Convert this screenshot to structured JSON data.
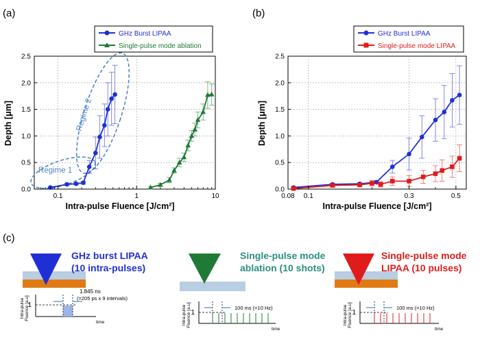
{
  "panel_labels": {
    "a": "(a)",
    "b": "(b)",
    "c": "(c)"
  },
  "colors": {
    "blue": "#1f2fd6",
    "green": "#1f7a35",
    "red": "#e01b1b",
    "regime": "#4f86c6",
    "substrate": "#e07b14",
    "film": "#b9cde3",
    "grid": "#999999",
    "teal": "#2a8f7f"
  },
  "chart_data": [
    {
      "id": "a",
      "type": "scatter",
      "xscale": "log",
      "xlim": [
        0.05,
        10
      ],
      "ylim": [
        0,
        2.5
      ],
      "xticks": [
        0.1,
        1,
        10
      ],
      "xtick_labels": [
        "0.1",
        "1",
        "10"
      ],
      "yticks": [
        0,
        0.5,
        1,
        1.5,
        2,
        2.5
      ],
      "ytick_labels": [
        "0.0",
        "0.5",
        "1.0",
        "1.5",
        "2.0",
        "2.5"
      ],
      "xlabel": "Intra-pulse Fluence [J/cm²]",
      "ylabel": "Depth [μm]",
      "legend_position": "top",
      "series": [
        {
          "name": "GHz Burst LIPAA",
          "color": "#1f2fd6",
          "marker": "circle",
          "x": [
            0.08,
            0.13,
            0.17,
            0.21,
            0.25,
            0.3,
            0.34,
            0.39,
            0.43,
            0.48,
            0.53
          ],
          "y": [
            0.03,
            0.09,
            0.1,
            0.12,
            0.42,
            0.68,
            0.98,
            1.2,
            1.5,
            1.7,
            1.78
          ],
          "err": [
            0.02,
            0.02,
            0.02,
            0.03,
            0.12,
            0.3,
            0.4,
            0.4,
            0.5,
            0.5,
            0.55
          ]
        },
        {
          "name": "Single-pulse mode ablation",
          "color": "#1f7a35",
          "marker": "triangle",
          "x": [
            1.5,
            2.0,
            2.6,
            3.0,
            3.5,
            4.0,
            4.5,
            5.0,
            5.5,
            6.0,
            7.0,
            8.0,
            9.0
          ],
          "y": [
            0.03,
            0.08,
            0.17,
            0.35,
            0.5,
            0.6,
            0.82,
            1.0,
            1.12,
            1.3,
            1.45,
            1.77,
            1.78
          ],
          "err": [
            0.02,
            0.03,
            0.05,
            0.05,
            0.08,
            0.08,
            0.1,
            0.1,
            0.12,
            0.15,
            0.15,
            0.25,
            0.2
          ]
        }
      ],
      "annotations": [
        "Regime 1",
        "Regime 2"
      ]
    },
    {
      "id": "b",
      "type": "scatter",
      "xscale": "log",
      "xlim": [
        0.08,
        0.56
      ],
      "ylim": [
        0,
        2.5
      ],
      "xticks": [
        0.08,
        0.1,
        0.3,
        0.5
      ],
      "xtick_labels": [
        "0.08",
        "0.1",
        "0.3",
        "0.5"
      ],
      "yticks": [
        0,
        0.5,
        1,
        1.5,
        2,
        2.5
      ],
      "ytick_labels": [
        "0.0",
        "0.5",
        "1.0",
        "1.5",
        "2.0",
        "2.5"
      ],
      "xlabel": "Intra-pulse Fluence [J/cm²]",
      "ylabel": "Depth [μm]",
      "legend_position": "top",
      "series": [
        {
          "name": "GHz Burst LIPAA",
          "color": "#1f2fd6",
          "marker": "circle",
          "x": [
            0.085,
            0.13,
            0.175,
            0.21,
            0.25,
            0.3,
            0.345,
            0.4,
            0.44,
            0.48,
            0.52
          ],
          "y": [
            0.03,
            0.09,
            0.1,
            0.13,
            0.42,
            0.66,
            0.98,
            1.3,
            1.45,
            1.67,
            1.77
          ],
          "err": [
            0.02,
            0.02,
            0.02,
            0.03,
            0.12,
            0.3,
            0.4,
            0.4,
            0.5,
            0.5,
            0.55
          ]
        },
        {
          "name": "Single-pulse mode LIPAA",
          "color": "#e01b1b",
          "marker": "square",
          "x": [
            0.085,
            0.13,
            0.175,
            0.2,
            0.22,
            0.25,
            0.3,
            0.35,
            0.4,
            0.43,
            0.48,
            0.52
          ],
          "y": [
            0.01,
            0.07,
            0.08,
            0.11,
            0.09,
            0.15,
            0.15,
            0.23,
            0.29,
            0.35,
            0.42,
            0.58
          ],
          "err": [
            0.02,
            0.02,
            0.03,
            0.05,
            0.05,
            0.08,
            0.1,
            0.12,
            0.15,
            0.2,
            0.2,
            0.25
          ]
        }
      ]
    }
  ],
  "panel_c": {
    "modes": [
      {
        "title": [
          "GHz burst LIPAA",
          "(10 intra-pulses)"
        ],
        "color": "#1f2fd6",
        "annotation": [
          "1.845 ns",
          "(=205 ps x 9 intervals)"
        ],
        "pulse_spacing": "dense"
      },
      {
        "title": [
          "Single-pulse mode",
          "ablation (10 shots)"
        ],
        "color": "#1f7a35",
        "annotation": [
          "100 ms (=10 Hz)"
        ],
        "pulse_spacing": "sparse"
      },
      {
        "title": [
          "Single-pulse mode",
          "LIPAA (10 pulses)"
        ],
        "color": "#e01b1b",
        "annotation": [
          "100 ms (=10 Hz)"
        ],
        "pulse_spacing": "sparse"
      }
    ],
    "axis": {
      "ylabel": [
        "Intra-pulse",
        "Fluence [a.u]"
      ],
      "xlabel": "time",
      "one_label": "1"
    }
  }
}
